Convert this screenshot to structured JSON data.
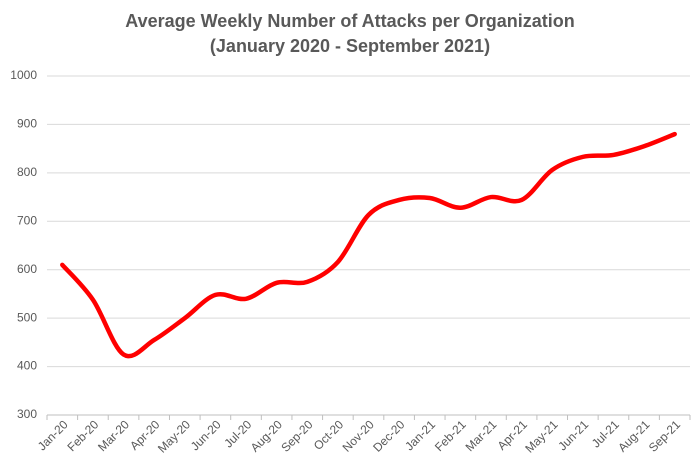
{
  "chart_data": {
    "type": "line",
    "title": [
      "Average Weekly Number of Attacks per Organization",
      "(January 2020 - September 2021)"
    ],
    "categories": [
      "Jan-20",
      "Feb-20",
      "Mar-20",
      "Apr-20",
      "May-20",
      "Jun-20",
      "Jul-20",
      "Aug-20",
      "Sep-20",
      "Oct-20",
      "Nov-20",
      "Dec-20",
      "Jan-21",
      "Feb-21",
      "Mar-21",
      "Apr-21",
      "May-21",
      "Jun-21",
      "Jul-21",
      "Aug-21",
      "Sep-21"
    ],
    "values": [
      610,
      538,
      425,
      455,
      500,
      548,
      540,
      573,
      575,
      616,
      713,
      744,
      748,
      728,
      750,
      744,
      806,
      833,
      837,
      855,
      880
    ],
    "color": "#ff0000",
    "ylim": [
      300,
      1000
    ],
    "yticks": [
      300,
      400,
      500,
      600,
      700,
      800,
      900,
      1000
    ],
    "grid": true,
    "smooth": true
  }
}
